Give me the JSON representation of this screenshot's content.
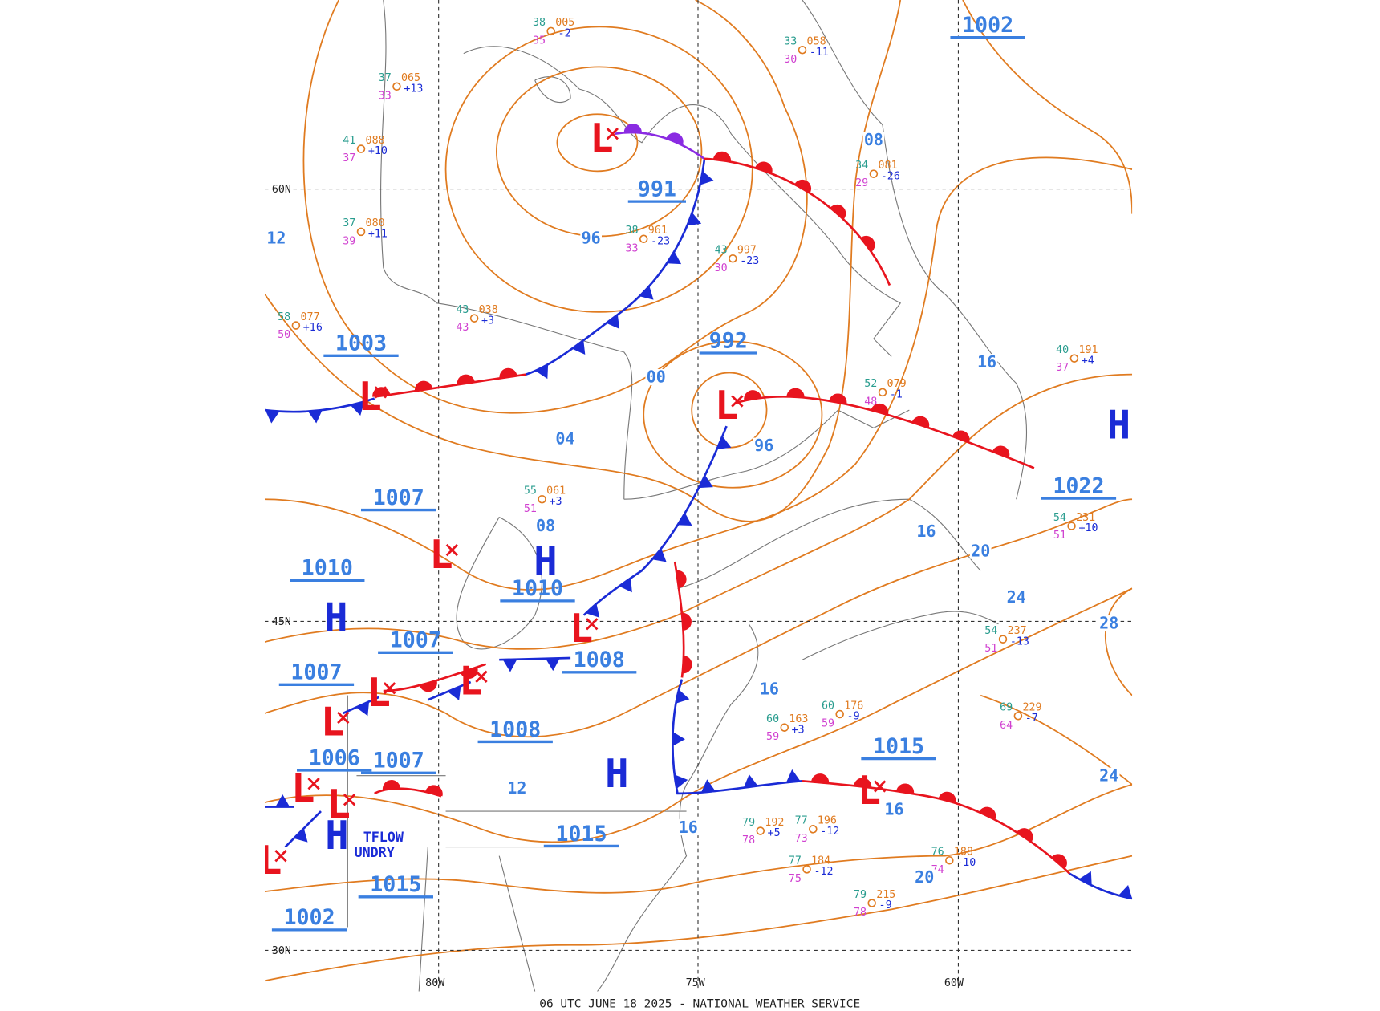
{
  "map": {
    "footer": "06 UTC JUNE 18 2025 - NATIONAL WEATHER SERVICE",
    "grid_labels": [
      "60N",
      "45N",
      "30N",
      "80W",
      "75W",
      "60W"
    ],
    "center_pressures": [
      "1002",
      "991",
      "1003",
      "992",
      "1007",
      "1010",
      "1010",
      "1007",
      "1007",
      "1008",
      "1008",
      "1006",
      "1007",
      "1015",
      "1015",
      "1015",
      "1002",
      "1022"
    ],
    "isobar_labels": [
      "08",
      "96",
      "00",
      "04",
      "96",
      "08",
      "16",
      "16",
      "20",
      "24",
      "28",
      "16",
      "12",
      "16",
      "16",
      "20",
      "24",
      "12"
    ],
    "highs": [
      "H",
      "H",
      "H",
      "H",
      "H"
    ],
    "lows": [
      "L",
      "L",
      "L",
      "L",
      "L",
      "L",
      "L",
      "L",
      "L",
      "L",
      "L",
      "L"
    ],
    "annotations": [
      "TFLOW",
      "UNDRY"
    ],
    "stations": [
      {
        "t": "38",
        "p": "961",
        "td": "33",
        "tend": "-23"
      },
      {
        "t": "43",
        "p": "997",
        "td": "30",
        "tend": "-23"
      },
      {
        "t": "34",
        "p": "081",
        "td": "29",
        "tend": "-26"
      },
      {
        "t": "43",
        "p": "038",
        "td": "43",
        "tend": "+3"
      },
      {
        "t": "52",
        "p": "079",
        "td": "48",
        "tend": "-1"
      },
      {
        "t": "40",
        "p": "191",
        "td": "37",
        "tend": "+4"
      },
      {
        "t": "54",
        "p": "231",
        "td": "51",
        "tend": "+10"
      },
      {
        "t": "54",
        "p": "237",
        "td": "51",
        "tend": "-13"
      },
      {
        "t": "69",
        "p": "229",
        "td": "64",
        "tend": "-7"
      },
      {
        "t": "60",
        "p": "176",
        "td": "59",
        "tend": "-9"
      },
      {
        "t": "77",
        "p": "184",
        "td": "75",
        "tend": "-12"
      },
      {
        "t": "79",
        "p": "215",
        "td": "78",
        "tend": "-9"
      },
      {
        "t": "76",
        "p": "188",
        "td": "74",
        "tend": "-10"
      },
      {
        "t": "79",
        "p": "192",
        "td": "78",
        "tend": "+5"
      },
      {
        "t": "77",
        "p": "196",
        "td": "73",
        "tend": "-12"
      },
      {
        "t": "38",
        "p": "005",
        "td": "35",
        "tend": "-2"
      },
      {
        "t": "33",
        "p": "058",
        "td": "30",
        "tend": "-11"
      },
      {
        "t": "37",
        "p": "065",
        "td": "33",
        "tend": "+13"
      },
      {
        "t": "41",
        "p": "088",
        "td": "37",
        "tend": "+10"
      },
      {
        "t": "37",
        "p": "080",
        "td": "39",
        "tend": "+11"
      },
      {
        "t": "58",
        "p": "077",
        "td": "50",
        "tend": "+16"
      },
      {
        "t": "55",
        "p": "061",
        "td": "51",
        "tend": "+3"
      },
      {
        "t": "60",
        "p": "163",
        "td": "59",
        "tend": "+3"
      }
    ]
  }
}
